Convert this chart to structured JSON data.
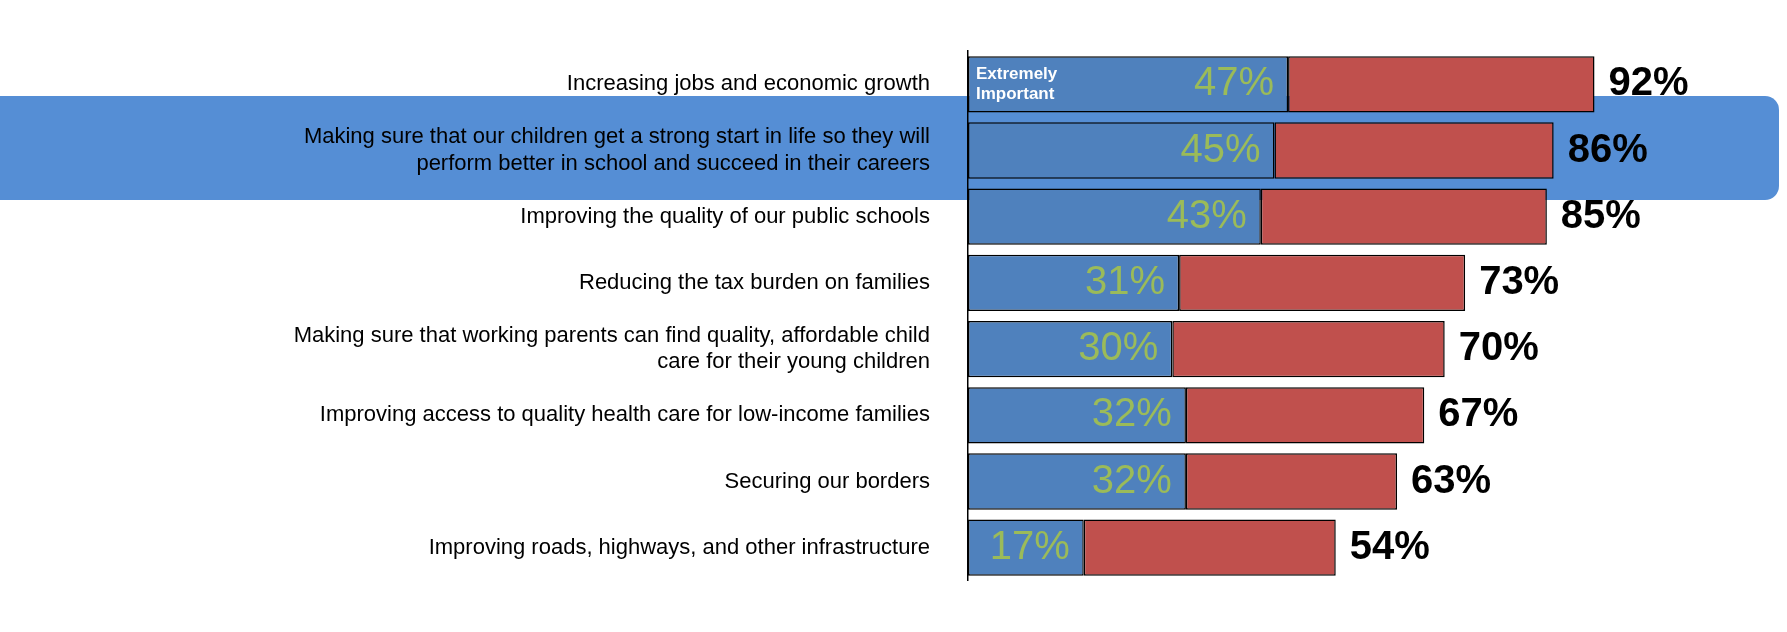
{
  "chart_data": {
    "type": "bar",
    "orientation": "horizontal",
    "stacked": true,
    "categories": [
      "Increasing jobs and economic growth",
      "Making sure that our children get a strong start in life so they will perform better in school and succeed in their careers",
      "Improving the quality of our public schools",
      "Reducing the tax burden on families",
      "Making sure that working parents can find quality, affordable child care for their young children",
      "Improving access to quality health care for low-income families",
      "Securing our borders",
      "Improving roads, highways, and other infrastructure"
    ],
    "series": [
      {
        "name": "Extremely Important",
        "color": "#4f81bd",
        "values": [
          47,
          45,
          43,
          31,
          30,
          32,
          32,
          17
        ],
        "value_labels": [
          "47%",
          "45%",
          "43%",
          "31%",
          "30%",
          "32%",
          "32%",
          "17%"
        ]
      },
      {
        "color": "#c0504d",
        "values": [
          45,
          41,
          42,
          42,
          40,
          35,
          31,
          37
        ]
      }
    ],
    "totals": [
      "92%",
      "86%",
      "85%",
      "73%",
      "70%",
      "67%",
      "63%",
      "54%"
    ],
    "tick_labels": "y",
    "legend": false
  }
}
